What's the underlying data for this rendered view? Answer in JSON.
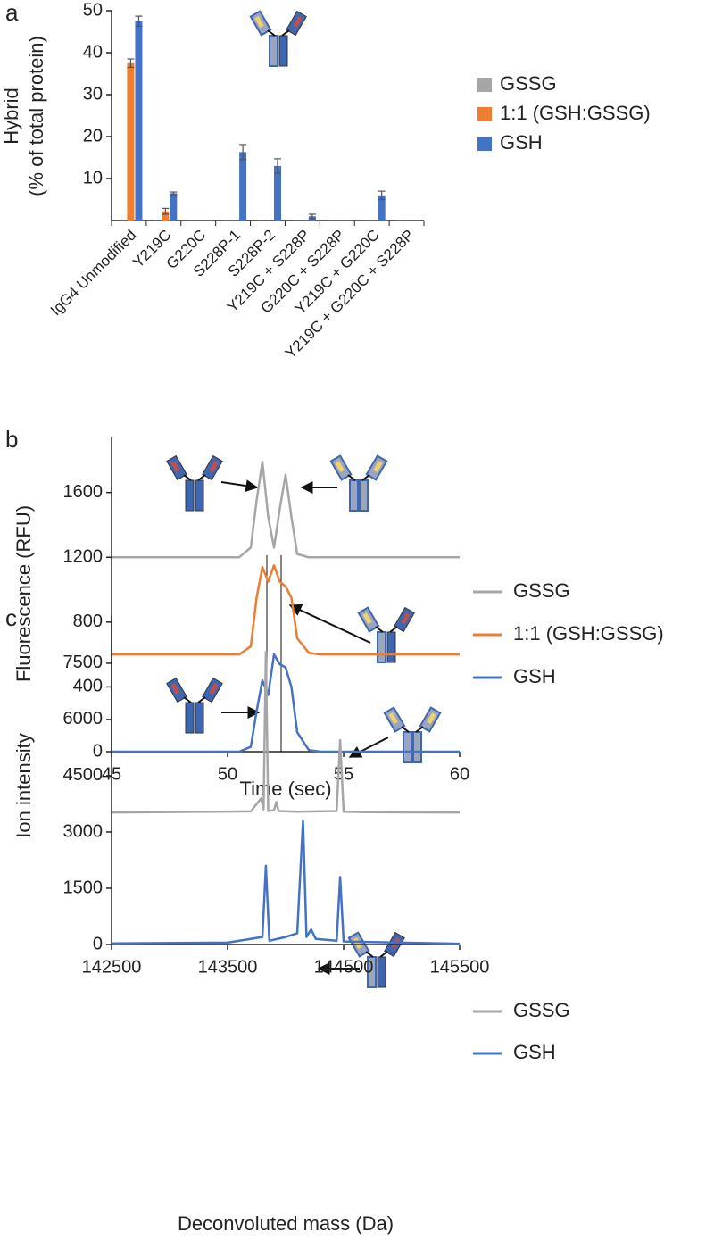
{
  "chart_data": [
    {
      "type": "bar",
      "panel_label": "a",
      "ylabel": [
        "Hybrid",
        "(% of total protein)"
      ],
      "categories": [
        "IgG4 Unmodified",
        "Y219C",
        "G220C",
        "S228P-1",
        "S228P-2",
        "Y219C + S228P",
        "G220C + S228P",
        "Y219C + G220C",
        "Y219C + G220C + S228P"
      ],
      "series": [
        {
          "name": "GSSG",
          "color": "#a6a6a6",
          "values": [
            0,
            0,
            0,
            0,
            0,
            0,
            0,
            0,
            0
          ],
          "errors": [
            0,
            0,
            0,
            0,
            0,
            0,
            0,
            0,
            0
          ]
        },
        {
          "name": "1:1 (GSH:GSSG)",
          "color": "#ed7d31",
          "values": [
            37.5,
            2.2,
            0,
            0,
            0,
            0,
            0,
            0,
            0
          ],
          "errors": [
            1,
            0.7,
            0,
            0,
            0,
            0,
            0,
            0,
            0
          ]
        },
        {
          "name": "GSH",
          "color": "#4472c4",
          "values": [
            47.5,
            6.5,
            0,
            16.3,
            13,
            1,
            0,
            6,
            0
          ],
          "errors": [
            1.2,
            0.3,
            0,
            1.8,
            1.7,
            0.5,
            0,
            1,
            0
          ]
        }
      ],
      "ylim": [
        0,
        50
      ],
      "yticks": [
        10,
        20,
        30,
        40,
        50
      ],
      "legend_position": "right"
    },
    {
      "type": "line",
      "panel_label": "b",
      "ylabel": [
        "Fluorescence (RFU)"
      ],
      "xlabel": "Time (sec)",
      "x": [
        45,
        47,
        49,
        50.5,
        51,
        51.25,
        51.5,
        51.75,
        52,
        52.25,
        52.5,
        52.75,
        53,
        53.5,
        54,
        56,
        58,
        60
      ],
      "series": [
        {
          "name": "GSSG",
          "color": "#a6a6a6",
          "values": [
            1200,
            1200,
            1200,
            1200,
            1260,
            1550,
            1790,
            1450,
            1260,
            1500,
            1710,
            1450,
            1220,
            1200,
            1200,
            1200,
            1200,
            1200
          ]
        },
        {
          "name": "1:1 (GSH:GSSG)",
          "color": "#ed7d31",
          "values": [
            600,
            600,
            600,
            600,
            650,
            950,
            1140,
            1050,
            1150,
            1050,
            1020,
            950,
            700,
            610,
            600,
            600,
            600,
            600
          ]
        },
        {
          "name": "GSH",
          "color": "#4472c4",
          "values": [
            0,
            0,
            0,
            0,
            30,
            250,
            440,
            350,
            600,
            540,
            520,
            400,
            120,
            10,
            0,
            0,
            0,
            0
          ]
        }
      ],
      "xlim": [
        45,
        60
      ],
      "xticks": [
        45,
        50,
        55,
        60
      ],
      "ylim": [
        0,
        1940
      ],
      "yticks": [
        0,
        400,
        800,
        1200,
        1600
      ],
      "legend_position": "right"
    },
    {
      "type": "line",
      "panel_label": "c",
      "ylabel": [
        "Ion intensity"
      ],
      "xlabel": "Deconvoluted mass (Da)",
      "series": [
        {
          "name": "GSSG",
          "color": "#a6a6a6",
          "x": [
            142500,
            143700,
            143790,
            143810,
            143830,
            143850,
            143900,
            143920,
            143940,
            144100,
            144440,
            144470,
            144500,
            144700,
            145500
          ],
          "values": [
            3520,
            3550,
            3900,
            3600,
            7800,
            3560,
            3580,
            3800,
            3560,
            3540,
            3560,
            5450,
            3540,
            3530,
            3520
          ]
        },
        {
          "name": "GSH",
          "color": "#4472c4",
          "x": [
            142500,
            143500,
            143800,
            143830,
            143860,
            144000,
            144100,
            144150,
            144180,
            144220,
            144260,
            144440,
            144470,
            144500,
            145500
          ],
          "values": [
            30,
            50,
            200,
            2100,
            100,
            200,
            300,
            3300,
            200,
            400,
            150,
            100,
            1800,
            80,
            20
          ]
        }
      ],
      "xlim": [
        142500,
        145500
      ],
      "xticks": [
        142500,
        143500,
        144500,
        145500
      ],
      "ylim": [
        0,
        8760
      ],
      "yticks": [
        0,
        1500,
        3000,
        4500,
        6000,
        7500
      ],
      "legend_position": "right"
    }
  ]
}
